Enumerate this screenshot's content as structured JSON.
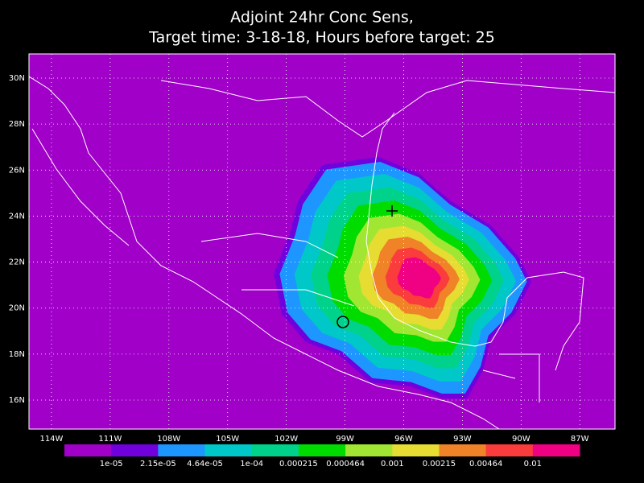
{
  "title": [
    "Adjoint 24hr Conc Sens,",
    "Target time: 3-18-18, Hours before target: 25"
  ],
  "map": {
    "xlim": [
      -115.15,
      -85.2
    ],
    "ylim": [
      14.74,
      31.05
    ],
    "grid": true,
    "xticks": [
      {
        "value": -114,
        "label": "114W"
      },
      {
        "value": -111,
        "label": "111W"
      },
      {
        "value": -108,
        "label": "108W"
      },
      {
        "value": -105,
        "label": "105W"
      },
      {
        "value": -102,
        "label": "102W"
      },
      {
        "value": -99,
        "label": "99W"
      },
      {
        "value": -96,
        "label": "96W"
      },
      {
        "value": -93,
        "label": "93W"
      },
      {
        "value": -90,
        "label": "90W"
      },
      {
        "value": -87,
        "label": "87W"
      }
    ],
    "yticks": [
      {
        "value": 16,
        "label": "16N"
      },
      {
        "value": 18,
        "label": "18N"
      },
      {
        "value": 20,
        "label": "20N"
      },
      {
        "value": 22,
        "label": "22N"
      },
      {
        "value": 24,
        "label": "24N"
      },
      {
        "value": 26,
        "label": "26N"
      },
      {
        "value": 28,
        "label": "28N"
      },
      {
        "value": 30,
        "label": "30N"
      }
    ]
  },
  "colorbar": {
    "colors": [
      "#a000c8",
      "#7000dc",
      "#1e96ff",
      "#00c8c8",
      "#00d28c",
      "#00dc00",
      "#a0e632",
      "#e6dc32",
      "#f08228",
      "#fa3c3c",
      "#f00082"
    ],
    "labels": [
      "1e-05",
      "2.15e-05",
      "4.64e-05",
      "1e-04",
      "0.000215",
      "0.000464",
      "0.001",
      "0.00215",
      "0.00464",
      "0.01"
    ]
  }
}
